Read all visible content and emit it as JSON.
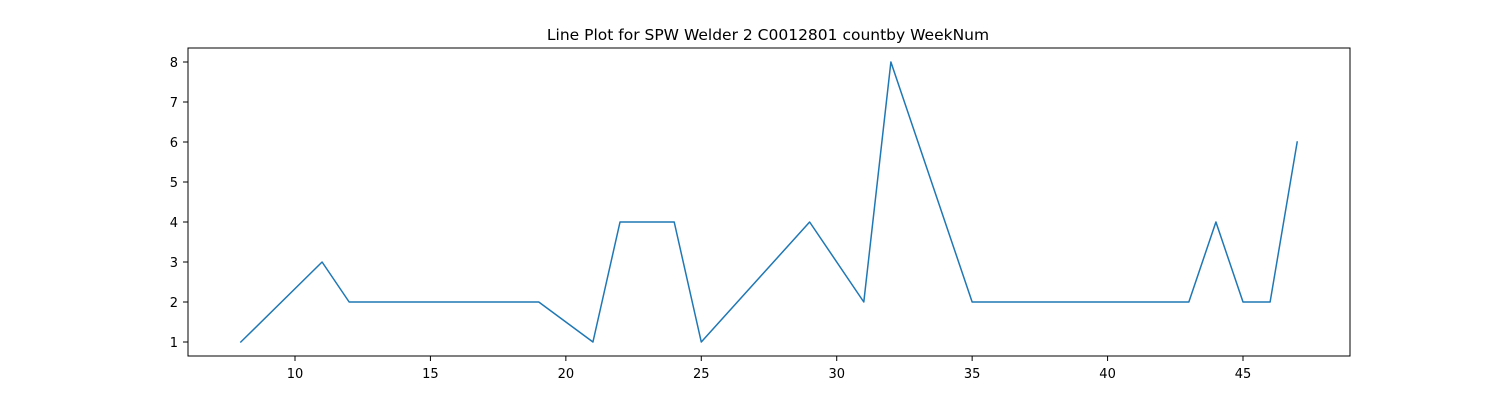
{
  "chart_data": {
    "type": "line",
    "title": "Line Plot for SPW Welder 2 C0012801 countby WeekNum",
    "xlabel": "",
    "ylabel": "",
    "xlim": [
      6.05,
      48.95
    ],
    "ylim": [
      0.65,
      8.35
    ],
    "x_ticks": [
      10,
      15,
      20,
      25,
      30,
      35,
      40,
      45
    ],
    "y_ticks": [
      1,
      2,
      3,
      4,
      5,
      6,
      7,
      8
    ],
    "grid": false,
    "series": [
      {
        "color": "#1f77b4",
        "x": [
          8,
          11,
          12,
          19,
          21,
          22,
          24,
          25,
          29,
          31,
          32,
          35,
          43,
          44,
          45,
          46,
          47
        ],
        "y": [
          1,
          3,
          2,
          2,
          1,
          4,
          4,
          1,
          4,
          2,
          8,
          2,
          2,
          4,
          2,
          2,
          6
        ]
      }
    ]
  }
}
